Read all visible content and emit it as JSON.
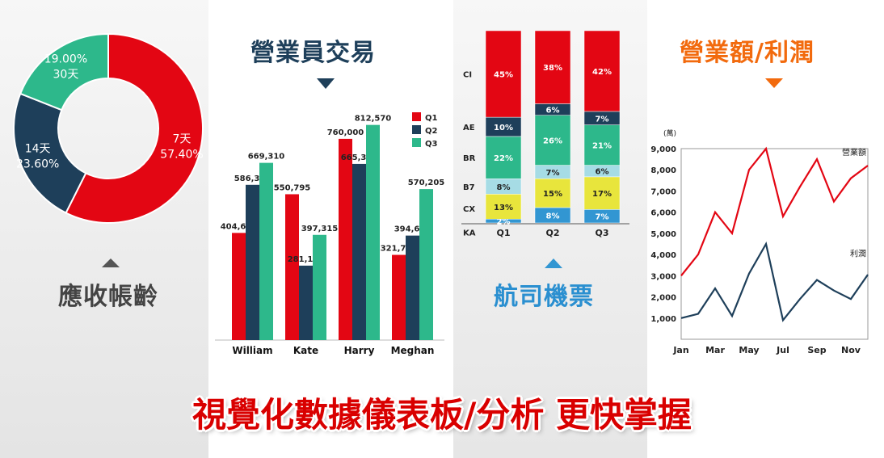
{
  "colors": {
    "red": "#e30613",
    "navy": "#1e3f5a",
    "teal": "#2db88b",
    "lightblue": "#a6dce5",
    "yellow": "#e8e53c",
    "blue": "#3296d2"
  },
  "titles": {
    "aging": "應收帳齡",
    "sales_trade": "營業員交易",
    "airline": "航司機票",
    "revenue_profit": "營業額/利潤"
  },
  "banner": "視覺化數據儀表板/分析 更快掌握",
  "chart_data": [
    {
      "type": "pie",
      "variant": "donut",
      "slices": [
        {
          "label": "7天",
          "value": 57.4,
          "display": "57.40%",
          "color": "#e30613"
        },
        {
          "label": "14天",
          "value": 23.6,
          "display": "23.60%",
          "color": "#1e3f5a"
        },
        {
          "label": "30天",
          "value": 19.0,
          "display": "19.00%",
          "color": "#2db88b"
        }
      ]
    },
    {
      "type": "bar",
      "categories": [
        "William",
        "Kate",
        "Harry",
        "Meghan"
      ],
      "series": [
        {
          "name": "Q1",
          "values": [
            404670,
            550795,
            760000,
            321750
          ],
          "labels": [
            "404,670",
            "550,795",
            "760,000",
            "321,750"
          ],
          "color": "#e30613"
        },
        {
          "name": "Q2",
          "values": [
            586345,
            281130,
            665310,
            394635
          ],
          "labels": [
            "586,345",
            "281,130",
            "665,310",
            "394,635"
          ],
          "color": "#1e3f5a"
        },
        {
          "name": "Q3",
          "values": [
            669310,
            397315,
            812570,
            570205
          ],
          "labels": [
            "669,310",
            "397,315",
            "812,570",
            "570,205"
          ],
          "color": "#2db88b"
        }
      ],
      "ylim": [
        0,
        900000
      ],
      "legend": "top-right"
    },
    {
      "type": "bar",
      "variant": "stacked-100",
      "categories": [
        "Q1",
        "Q2",
        "Q3"
      ],
      "series": [
        {
          "name": "KA",
          "values": [
            2,
            8,
            7
          ],
          "color": "#3296d2"
        },
        {
          "name": "CX",
          "values": [
            13,
            15,
            17
          ],
          "color": "#e8e53c"
        },
        {
          "name": "B7",
          "values": [
            8,
            7,
            6
          ],
          "color": "#a6dce5"
        },
        {
          "name": "BR",
          "values": [
            22,
            26,
            21
          ],
          "color": "#2db88b"
        },
        {
          "name": "AE",
          "values": [
            10,
            6,
            7
          ],
          "color": "#1e3f5a"
        },
        {
          "name": "CI",
          "values": [
            45,
            38,
            42
          ],
          "color": "#e30613"
        }
      ]
    },
    {
      "type": "line",
      "x": [
        "Jan",
        "Feb",
        "Mar",
        "Apr",
        "May",
        "Jun",
        "Jul",
        "Aug",
        "Sep",
        "Oct",
        "Nov",
        "Dec"
      ],
      "xticks": [
        "Jan",
        "Mar",
        "May",
        "Jul",
        "Sep",
        "Nov"
      ],
      "ylabel": "(萬)",
      "ylim": [
        0,
        9000
      ],
      "yticks": [
        "1,000",
        "2,000",
        "3,000",
        "4,000",
        "5,000",
        "6,000",
        "7,000",
        "8,000",
        "9,000"
      ],
      "series": [
        {
          "name": "營業額",
          "values": [
            3000,
            4000,
            6000,
            5000,
            8000,
            9000,
            5800,
            7200,
            8500,
            6500,
            7600,
            8200
          ],
          "color": "#e30613"
        },
        {
          "name": "利潤",
          "values": [
            1000,
            1200,
            2400,
            1100,
            3100,
            4500,
            900,
            1900,
            2800,
            2300,
            1900,
            3050
          ],
          "color": "#1e3f5a"
        }
      ]
    }
  ]
}
